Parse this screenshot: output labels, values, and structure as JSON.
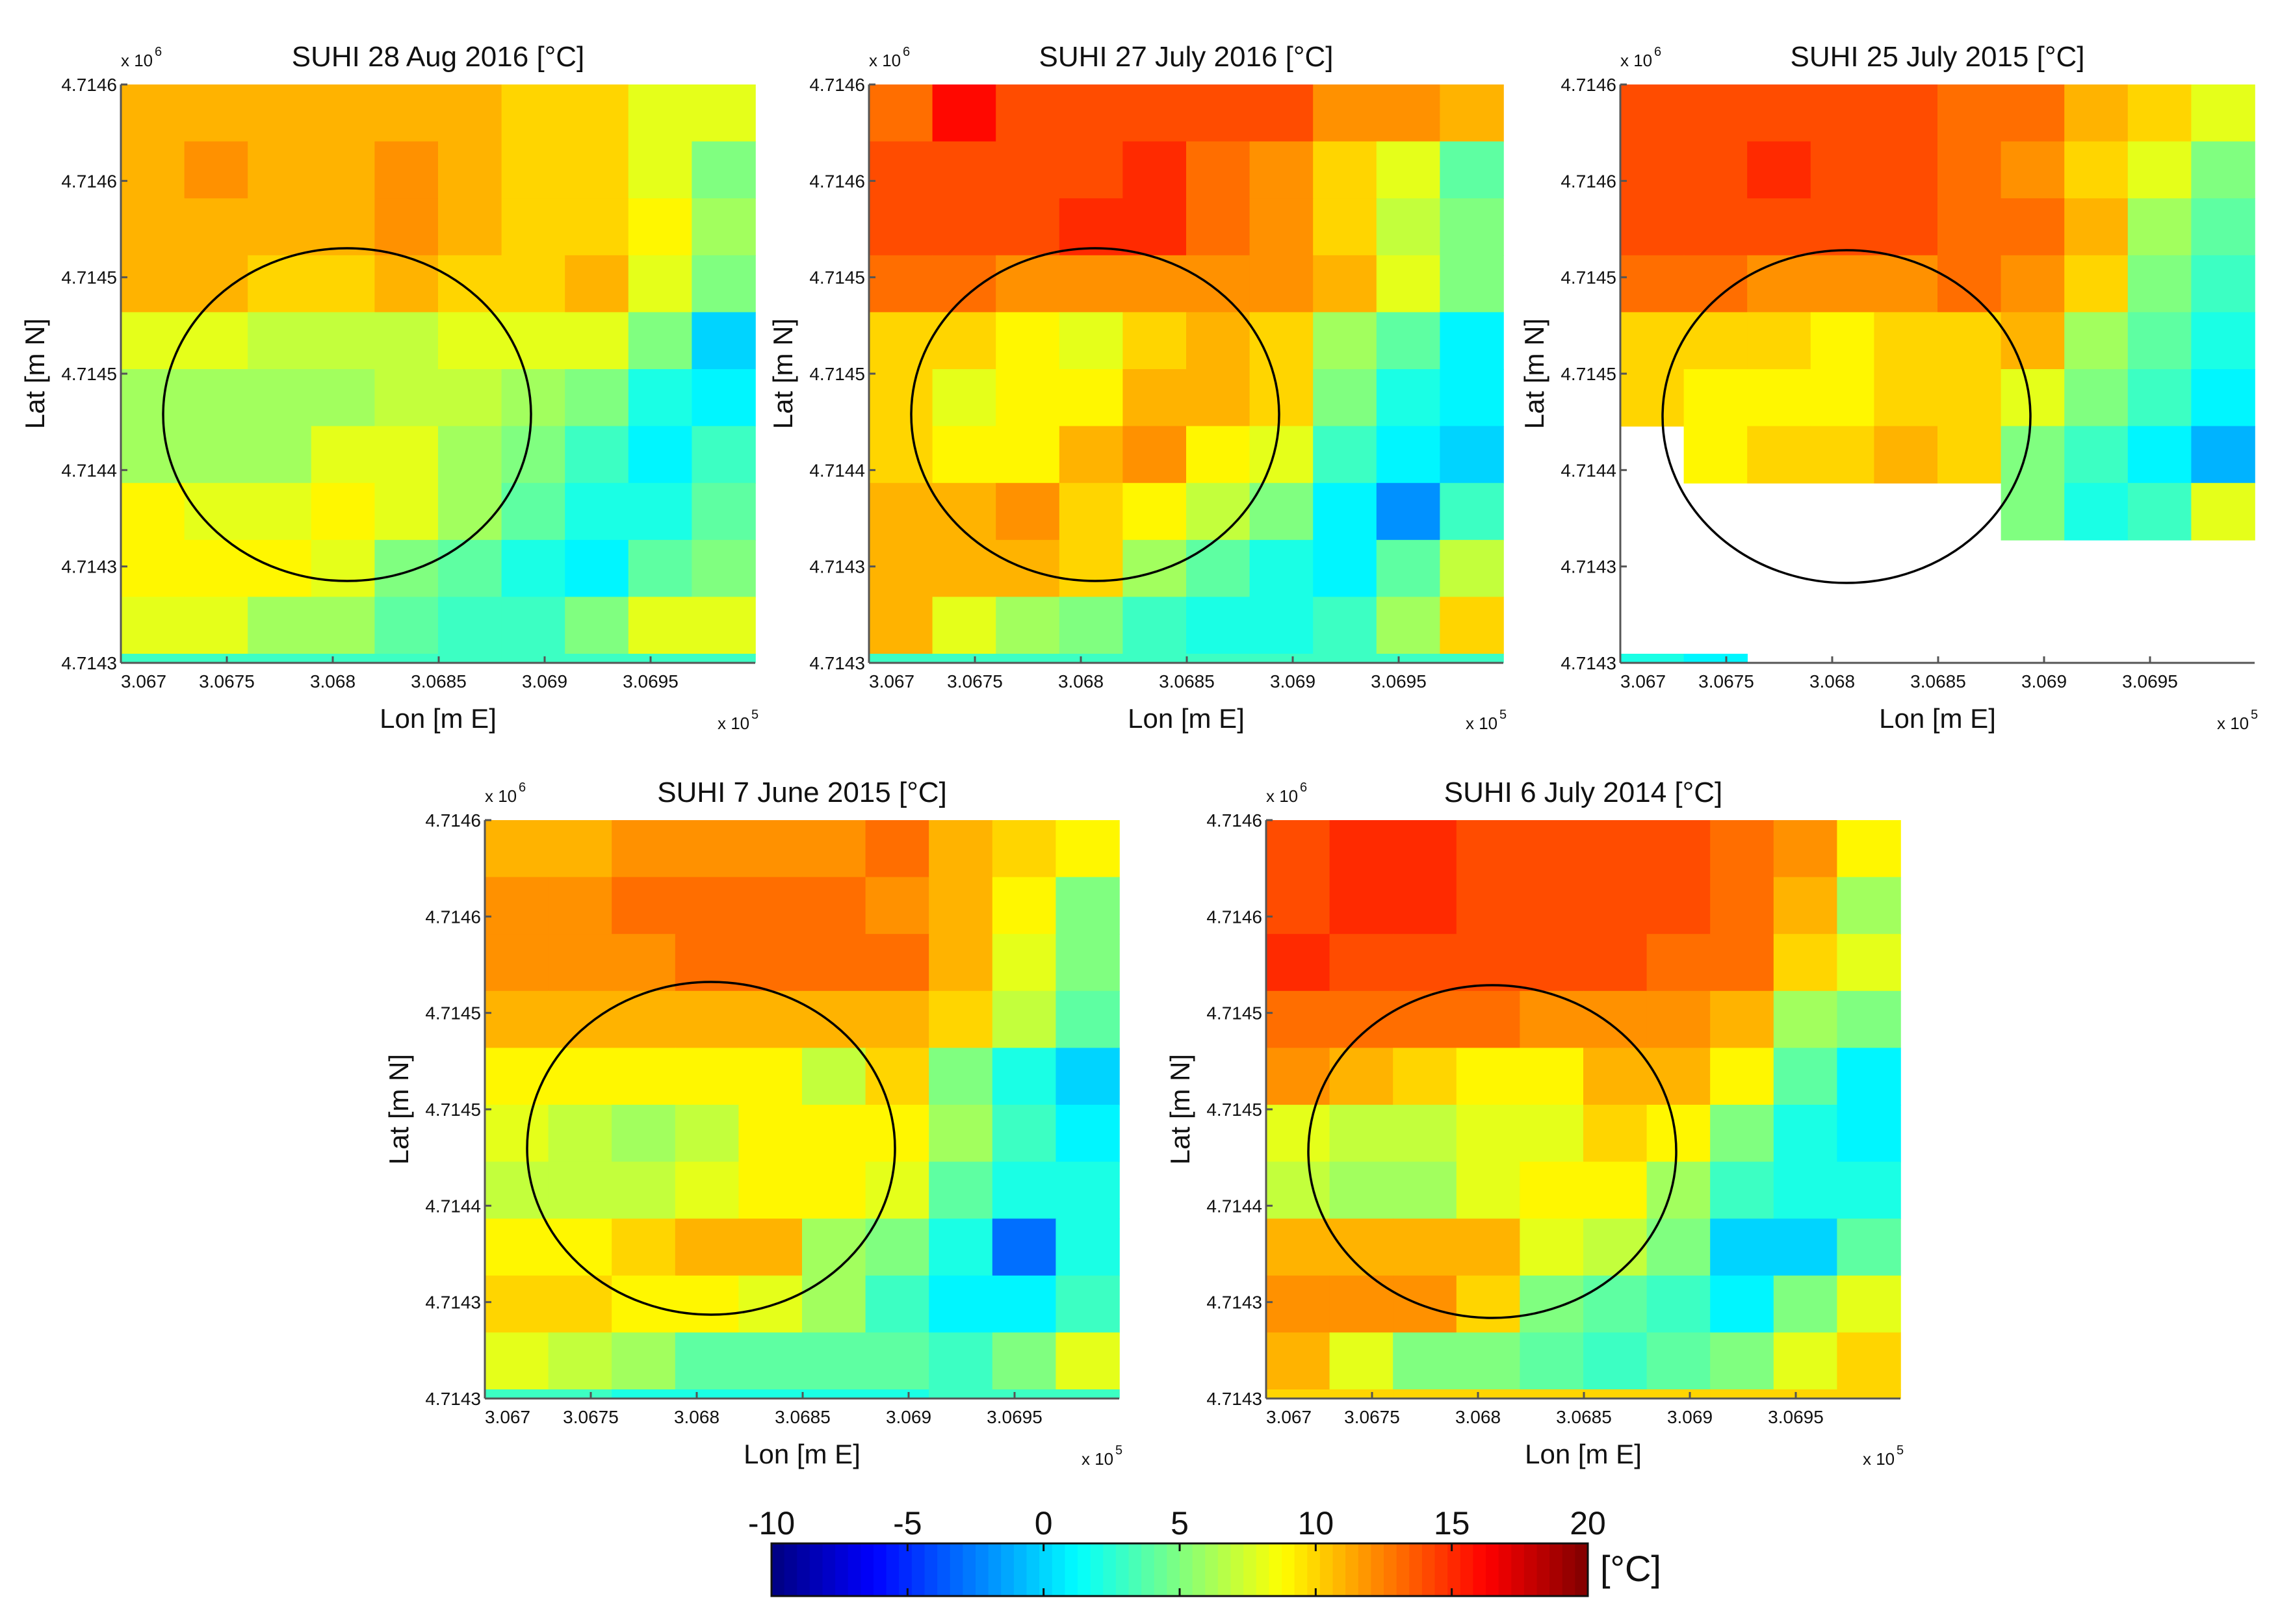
{
  "figure": {
    "colorbar": {
      "ticks": [
        "-10",
        "-5",
        "0",
        "5",
        "10",
        "15",
        "20"
      ],
      "range": [
        -10,
        20
      ],
      "unit": "[°C]"
    },
    "axes_common": {
      "xlabel": "Lon [m E]",
      "ylabel": "Lat [m N]",
      "x_ticks": [
        "3.067",
        "3.0675",
        "3.068",
        "3.0685",
        "3.069",
        "3.0695"
      ],
      "y_ticks": [
        "4.7146",
        "4.7146",
        "4.7145",
        "4.7145",
        "4.7144",
        "4.7143",
        "4.7143"
      ],
      "x_multiplier_base": "x 10",
      "x_multiplier_exp": "5",
      "y_multiplier_base": "x 10",
      "y_multiplier_exp": "6"
    }
  },
  "chart_data": [
    {
      "type": "heatmap",
      "title": "SUHI 28 Aug 2016 [°C]",
      "xlabel": "Lon [m E]",
      "ylabel": "Lat [m N]",
      "cols": 10,
      "values": [
        [
          11,
          11,
          11,
          11,
          11,
          11,
          10,
          10,
          8,
          8
        ],
        [
          11,
          12,
          11,
          11,
          12,
          11,
          10,
          10,
          8,
          5
        ],
        [
          11,
          11,
          11,
          11,
          12,
          11,
          10,
          10,
          9,
          6
        ],
        [
          11,
          11,
          10,
          10,
          11,
          10,
          10,
          11,
          8,
          5
        ],
        [
          8,
          8,
          7,
          7,
          7,
          8,
          8,
          8,
          5,
          0
        ],
        [
          6,
          6,
          6,
          6,
          7,
          7,
          6,
          5,
          2,
          1
        ],
        [
          6,
          6,
          6,
          8,
          8,
          6,
          5,
          3,
          1,
          3
        ],
        [
          9,
          8,
          8,
          9,
          8,
          6,
          4,
          2,
          2,
          4
        ],
        [
          9,
          9,
          9,
          8,
          5,
          4,
          2,
          1,
          4,
          5
        ],
        [
          8,
          8,
          6,
          6,
          4,
          3,
          3,
          5,
          8,
          8
        ]
      ],
      "bottom_strip": [
        3,
        3,
        3,
        3,
        3,
        3,
        3,
        3,
        3,
        3
      ],
      "outline": "ellipse"
    },
    {
      "type": "heatmap",
      "title": "SUHI 27 July 2016 [°C]",
      "xlabel": "Lon [m E]",
      "ylabel": "Lat [m N]",
      "cols": 10,
      "values": [
        [
          13,
          16,
          14,
          14,
          14,
          14,
          14,
          12,
          12,
          11
        ],
        [
          14,
          14,
          14,
          14,
          15,
          13,
          12,
          10,
          8,
          4
        ],
        [
          14,
          14,
          14,
          15,
          15,
          13,
          12,
          10,
          7,
          5
        ],
        [
          13,
          13,
          12,
          12,
          12,
          12,
          12,
          11,
          8,
          5
        ],
        [
          10,
          10,
          9,
          8,
          10,
          11,
          10,
          6,
          4,
          1
        ],
        [
          10,
          8,
          9,
          9,
          11,
          11,
          10,
          5,
          2,
          1
        ],
        [
          10,
          9,
          9,
          11,
          12,
          9,
          8,
          3,
          1,
          0
        ],
        [
          11,
          11,
          12,
          10,
          9,
          7,
          5,
          1,
          -2,
          3
        ],
        [
          11,
          11,
          11,
          10,
          6,
          4,
          2,
          1,
          4,
          7
        ],
        [
          11,
          8,
          6,
          5,
          3,
          2,
          2,
          3,
          6,
          10
        ]
      ],
      "bottom_strip": [
        3,
        3,
        3,
        3,
        3,
        3,
        3,
        3,
        3,
        3
      ],
      "outline": "ellipse"
    },
    {
      "type": "heatmap",
      "title": "SUHI  25 July 2015 [°C]",
      "xlabel": "Lon [m E]",
      "ylabel": "Lat [m N]",
      "cols": 10,
      "values": [
        [
          14,
          14,
          14,
          14,
          14,
          13,
          13,
          11,
          10,
          8
        ],
        [
          14,
          14,
          15,
          14,
          14,
          13,
          12,
          10,
          8,
          5
        ],
        [
          14,
          14,
          14,
          14,
          14,
          13,
          13,
          11,
          6,
          4
        ],
        [
          13,
          13,
          12,
          12,
          12,
          13,
          12,
          10,
          5,
          3
        ],
        [
          10,
          10,
          10,
          9,
          10,
          10,
          11,
          6,
          4,
          2
        ],
        [
          10,
          9,
          9,
          9,
          10,
          10,
          8,
          5,
          3,
          1
        ],
        [
          null,
          9,
          10,
          10,
          11,
          10,
          5,
          3,
          1,
          -1
        ],
        [
          null,
          null,
          null,
          null,
          null,
          null,
          5,
          2,
          3,
          8
        ],
        [
          null,
          null,
          null,
          null,
          null,
          null,
          null,
          null,
          null,
          null
        ],
        [
          null,
          null,
          null,
          null,
          null,
          null,
          null,
          null,
          null,
          null
        ]
      ],
      "bottom_strip": [
        2,
        1,
        null,
        null,
        null,
        null,
        null,
        null,
        null,
        null
      ],
      "outline": "ellipse"
    },
    {
      "type": "heatmap",
      "title": "SUHI  7 June 2015 [°C]",
      "xlabel": "Lon [m E]",
      "ylabel": "Lat [m N]",
      "cols": 10,
      "values": [
        [
          11,
          11,
          12,
          12,
          12,
          12,
          13,
          11,
          10,
          9
        ],
        [
          12,
          12,
          13,
          13,
          13,
          13,
          12,
          11,
          9,
          5
        ],
        [
          12,
          12,
          12,
          13,
          13,
          13,
          13,
          11,
          8,
          5
        ],
        [
          11,
          11,
          11,
          11,
          11,
          11,
          11,
          10,
          7,
          4
        ],
        [
          9,
          9,
          9,
          9,
          9,
          7,
          10,
          5,
          2,
          0
        ],
        [
          8,
          7,
          6,
          7,
          9,
          9,
          9,
          6,
          3,
          1
        ],
        [
          7,
          7,
          7,
          8,
          9,
          9,
          8,
          4,
          2,
          2
        ],
        [
          9,
          9,
          10,
          11,
          11,
          6,
          5,
          2,
          -3,
          2
        ],
        [
          10,
          10,
          9,
          9,
          8,
          6,
          3,
          1,
          1,
          3
        ],
        [
          8,
          7,
          6,
          4,
          4,
          4,
          4,
          3,
          5,
          8
        ]
      ],
      "bottom_strip": [
        3,
        3,
        2,
        2,
        2,
        2,
        2,
        3,
        3,
        3
      ],
      "outline": "ellipse"
    },
    {
      "type": "heatmap",
      "title": "SUHI 6 July 2014 [°C]",
      "xlabel": "Lon [m E]",
      "ylabel": "Lat [m N]",
      "cols": 10,
      "values": [
        [
          14,
          15,
          15,
          14,
          14,
          14,
          14,
          13,
          12,
          9
        ],
        [
          14,
          15,
          15,
          14,
          14,
          14,
          14,
          13,
          11,
          6
        ],
        [
          15,
          14,
          14,
          14,
          14,
          14,
          13,
          13,
          10,
          8
        ],
        [
          13,
          13,
          13,
          13,
          12,
          12,
          12,
          11,
          6,
          5
        ],
        [
          12,
          11,
          10,
          9,
          9,
          11,
          11,
          9,
          4,
          1
        ],
        [
          8,
          7,
          7,
          8,
          8,
          10,
          9,
          5,
          2,
          1
        ],
        [
          7,
          6,
          6,
          8,
          9,
          9,
          6,
          3,
          2,
          2
        ],
        [
          11,
          11,
          11,
          11,
          8,
          7,
          5,
          0,
          0,
          4
        ],
        [
          12,
          12,
          12,
          10,
          5,
          4,
          3,
          1,
          5,
          8
        ],
        [
          11,
          8,
          5,
          5,
          4,
          3,
          4,
          5,
          8,
          10
        ]
      ],
      "bottom_strip": [
        10,
        10,
        10,
        10,
        10,
        10,
        10,
        10,
        10,
        10
      ],
      "outline": "ellipse"
    }
  ]
}
